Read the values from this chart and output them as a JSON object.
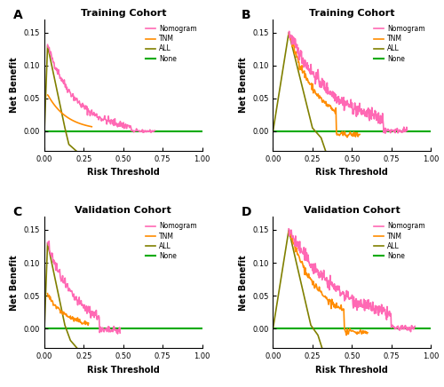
{
  "panels": [
    {
      "label": "A",
      "title": "Training Cohort",
      "xlim": [
        0.0,
        1.0
      ],
      "ylim": [
        -0.03,
        0.17
      ],
      "yticks": [
        0.0,
        0.05,
        0.1,
        0.15
      ],
      "xticks": [
        0.0,
        0.25,
        0.5,
        0.75,
        1.0
      ],
      "type": "A"
    },
    {
      "label": "B",
      "title": "Training Cohort",
      "xlim": [
        0.0,
        1.0
      ],
      "ylim": [
        -0.03,
        0.17
      ],
      "yticks": [
        0.0,
        0.05,
        0.1,
        0.15
      ],
      "xticks": [
        0.0,
        0.25,
        0.5,
        0.75,
        1.0
      ],
      "type": "B"
    },
    {
      "label": "C",
      "title": "Validation Cohort",
      "xlim": [
        0.0,
        1.0
      ],
      "ylim": [
        -0.03,
        0.17
      ],
      "yticks": [
        0.0,
        0.05,
        0.1,
        0.15
      ],
      "xticks": [
        0.0,
        0.25,
        0.5,
        0.75,
        1.0
      ],
      "type": "C"
    },
    {
      "label": "D",
      "title": "Validation Cohort",
      "xlim": [
        0.0,
        1.0
      ],
      "ylim": [
        -0.03,
        0.17
      ],
      "yticks": [
        0.0,
        0.05,
        0.1,
        0.15
      ],
      "xticks": [
        0.0,
        0.25,
        0.5,
        0.75,
        1.0
      ],
      "type": "D"
    }
  ],
  "colors": {
    "nomogram": "#FF69B4",
    "tnm": "#FF8C00",
    "all": "#808000",
    "none": "#00AA00"
  },
  "legend_labels": [
    "Nomogram",
    "TNM",
    "ALL",
    "None"
  ],
  "xlabel": "Risk Threshold",
  "ylabel": "Net Benefit",
  "background_color": "#FFFFFF"
}
